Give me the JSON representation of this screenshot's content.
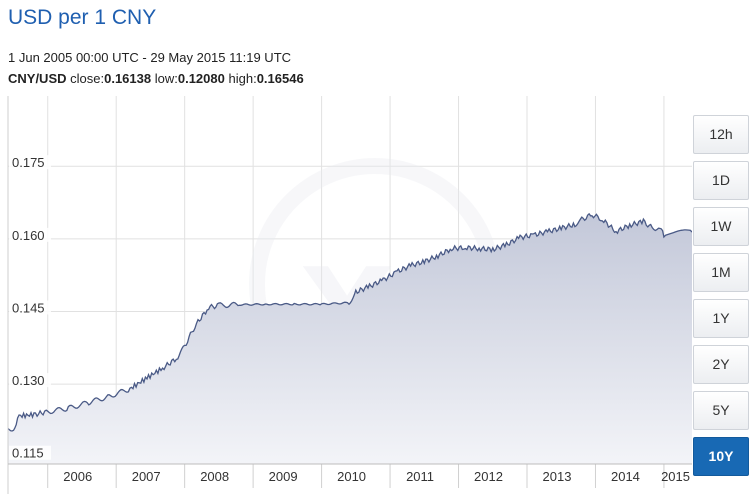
{
  "header": {
    "title": "USD per 1 CNY",
    "date_range": "1 Jun 2005 00:00 UTC - 29 May 2015 11:19 UTC",
    "pair": "CNY/USD",
    "close_label": "close:",
    "close_value": "0.16138",
    "low_label": "low:",
    "low_value": "0.12080",
    "high_label": "high:",
    "high_value": "0.16546"
  },
  "range_buttons": [
    {
      "label": "12h",
      "active": false
    },
    {
      "label": "1D",
      "active": false
    },
    {
      "label": "1W",
      "active": false
    },
    {
      "label": "1M",
      "active": false
    },
    {
      "label": "1Y",
      "active": false
    },
    {
      "label": "2Y",
      "active": false
    },
    {
      "label": "5Y",
      "active": false
    },
    {
      "label": "10Y",
      "active": true
    }
  ],
  "colors": {
    "line": "#4a5a86",
    "area_top": "#c3c8d9",
    "area_bottom": "#f3f4f8",
    "grid": "#e1e1e1",
    "active_button": "#1869b4",
    "title": "#1f5fb0"
  },
  "chart_data": {
    "type": "area",
    "x": [
      2005.42,
      2005.52,
      2005.56,
      2005.8,
      2006.0,
      2006.3,
      2006.6,
      2006.9,
      2007.2,
      2007.45,
      2007.7,
      2007.9,
      2008.0,
      2008.15,
      2008.35,
      2008.5,
      2008.8,
      2009.2,
      2009.6,
      2010.0,
      2010.4,
      2010.5,
      2010.7,
      2010.9,
      2011.1,
      2011.3,
      2011.5,
      2011.7,
      2011.9,
      2012.1,
      2012.3,
      2012.5,
      2012.7,
      2012.9,
      2013.1,
      2013.3,
      2013.5,
      2013.7,
      2013.8,
      2013.95,
      2014.1,
      2014.3,
      2014.5,
      2014.7,
      2014.85,
      2014.92,
      2015.0,
      2015.05,
      2015.41
    ],
    "y": [
      0.1208,
      0.1208,
      0.1234,
      0.1237,
      0.1243,
      0.125,
      0.1262,
      0.1275,
      0.129,
      0.1313,
      0.1335,
      0.1355,
      0.1378,
      0.142,
      0.1458,
      0.1463,
      0.1464,
      0.1465,
      0.1465,
      0.1465,
      0.1468,
      0.149,
      0.1502,
      0.1515,
      0.1532,
      0.1545,
      0.1553,
      0.1565,
      0.158,
      0.1582,
      0.158,
      0.1578,
      0.1588,
      0.1603,
      0.1608,
      0.1615,
      0.1622,
      0.163,
      0.164,
      0.165,
      0.164,
      0.1615,
      0.1628,
      0.1636,
      0.162,
      0.1625,
      0.1608,
      0.1612,
      0.1614
    ],
    "y_ticks": [
      0.115,
      0.13,
      0.145,
      0.16,
      0.175
    ],
    "y_tick_labels": [
      "0.115",
      "0.130",
      "0.145",
      "0.160",
      "0.175"
    ],
    "x_ticks": [
      2006,
      2007,
      2008,
      2009,
      2010,
      2011,
      2012,
      2013,
      2014,
      2015
    ],
    "x_tick_labels": [
      "2006",
      "2007",
      "2008",
      "2009",
      "2010",
      "2011",
      "2012",
      "2013",
      "2014",
      "2015"
    ],
    "xlim": [
      2005.42,
      2015.41
    ],
    "ylim": [
      0.1135,
      0.1895
    ],
    "grid": true
  }
}
